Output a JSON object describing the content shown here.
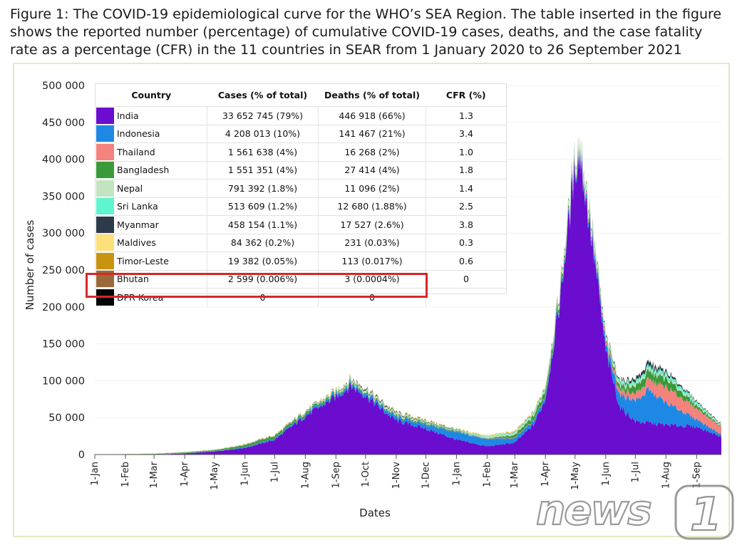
{
  "caption": "Figure 1: The COVID-19 epidemiological curve for the WHO’s SEA Region. The table inserted in the figure shows the reported number (percentage) of cumulative COVID-19 cases, deaths, and the case fatality rate as a percentage (CFR) in the 11 countries in SEAR from 1 January 2020 to 26 September 2021",
  "watermark": "news1",
  "table": {
    "headers": [
      "Country",
      "Cases (% of total)",
      "Deaths (% of total)",
      "CFR (%)"
    ],
    "rows": [
      {
        "country": "India",
        "cases": "33 652 745 (79%)",
        "deaths": "446 918 (66%)",
        "cfr": "1.3",
        "color": "#6a0dce"
      },
      {
        "country": "Indonesia",
        "cases": "4 208 013 (10%)",
        "deaths": "141 467 (21%)",
        "cfr": "3.4",
        "color": "#1e88e5"
      },
      {
        "country": "Thailand",
        "cases": "1 561 638 (4%)",
        "deaths": "16 268 (2%)",
        "cfr": "1.0",
        "color": "#f4837d"
      },
      {
        "country": "Bangladesh",
        "cases": "1 551 351 (4%)",
        "deaths": "27 414 (4%)",
        "cfr": "1.8",
        "color": "#3a9a3a"
      },
      {
        "country": "Nepal",
        "cases": "791 392 (1.8%)",
        "deaths": "11 096 (2%)",
        "cfr": "1.4",
        "color": "#c4e3c0"
      },
      {
        "country": "Sri Lanka",
        "cases": "513 609 (1.2%)",
        "deaths": "12 680 (1.88%)",
        "cfr": "2.5",
        "color": "#5ff5cf"
      },
      {
        "country": "Myanmar",
        "cases": "458 154 (1.1%)",
        "deaths": "17 527 (2.6%)",
        "cfr": "3.8",
        "color": "#2d3a4a"
      },
      {
        "country": "Maldives",
        "cases": "84 362 (0.2%)",
        "deaths": "231 (0.03%)",
        "cfr": "0.3",
        "color": "#fde07a"
      },
      {
        "country": "Timor-Leste",
        "cases": "19 382 (0.05%)",
        "deaths": "113 (0.017%)",
        "cfr": "0.6",
        "color": "#c8930e"
      },
      {
        "country": "Bhutan",
        "cases": "2 599 (0.006%)",
        "deaths": "3 (0.0004%)",
        "cfr": "0",
        "color": "#9a6a3a"
      },
      {
        "country": "DPR Korea",
        "cases": "0",
        "deaths": "0",
        "cfr": "",
        "color": "#050505"
      }
    ]
  },
  "chart_data": {
    "type": "area",
    "title": "",
    "xlabel": "Dates",
    "ylabel": "Number of cases",
    "ylim": [
      0,
      500000
    ],
    "yticks": [
      0,
      50000,
      100000,
      150000,
      200000,
      250000,
      300000,
      350000,
      400000,
      450000,
      500000
    ],
    "ytick_labels": [
      "0",
      "50 000",
      "100 000",
      "150 000",
      "200 000",
      "250 000",
      "300 000",
      "350 000",
      "400 000",
      "450 000",
      "500 000"
    ],
    "xtick_labels": [
      "1-Jan",
      "1-Feb",
      "1-Mar",
      "1-Apr",
      "1-May",
      "1-Jun",
      "1-Jul",
      "1-Aug",
      "1-Sep",
      "1-Oct",
      "1-Nov",
      "1-Dec",
      "1-Jan",
      "1-Feb",
      "1-Mar",
      "1-Apr",
      "1-May",
      "1-Jun",
      "1-Jul",
      "1-Aug",
      "1-Sep"
    ],
    "xtick_dates": [
      "2020-01-01",
      "2020-02-01",
      "2020-03-01",
      "2020-04-01",
      "2020-05-01",
      "2020-06-01",
      "2020-07-01",
      "2020-08-01",
      "2020-09-01",
      "2020-10-01",
      "2020-11-01",
      "2020-12-01",
      "2021-01-01",
      "2021-02-01",
      "2021-03-01",
      "2021-04-01",
      "2021-05-01",
      "2021-06-01",
      "2021-07-01",
      "2021-08-01",
      "2021-09-01"
    ],
    "x_range": [
      "2020-01-01",
      "2021-09-26"
    ],
    "stacked": true,
    "series": [
      {
        "name": "India",
        "color": "#6a0dce",
        "points": [
          [
            "2020-01-01",
            0
          ],
          [
            "2020-03-01",
            0
          ],
          [
            "2020-04-01",
            1500
          ],
          [
            "2020-05-01",
            4000
          ],
          [
            "2020-06-01",
            9000
          ],
          [
            "2020-07-01",
            20000
          ],
          [
            "2020-08-01",
            52000
          ],
          [
            "2020-09-01",
            78000
          ],
          [
            "2020-09-16",
            93000
          ],
          [
            "2020-10-01",
            80000
          ],
          [
            "2020-10-20",
            58000
          ],
          [
            "2020-11-01",
            46000
          ],
          [
            "2020-12-01",
            35000
          ],
          [
            "2021-01-01",
            20000
          ],
          [
            "2021-02-01",
            11000
          ],
          [
            "2021-03-01",
            16000
          ],
          [
            "2021-03-20",
            40000
          ],
          [
            "2021-04-01",
            75000
          ],
          [
            "2021-04-15",
            200000
          ],
          [
            "2021-05-01",
            390000
          ],
          [
            "2021-05-06",
            405000
          ],
          [
            "2021-05-20",
            270000
          ],
          [
            "2021-06-01",
            140000
          ],
          [
            "2021-06-15",
            65000
          ],
          [
            "2021-07-01",
            45000
          ],
          [
            "2021-08-01",
            40000
          ],
          [
            "2021-09-01",
            38000
          ],
          [
            "2021-09-26",
            24000
          ]
        ]
      },
      {
        "name": "Indonesia",
        "color": "#1e88e5",
        "points": [
          [
            "2020-01-01",
            0
          ],
          [
            "2020-05-01",
            500
          ],
          [
            "2020-07-01",
            1500
          ],
          [
            "2020-09-01",
            3000
          ],
          [
            "2020-10-01",
            4000
          ],
          [
            "2020-11-01",
            4500
          ],
          [
            "2020-12-01",
            6000
          ],
          [
            "2021-01-01",
            10000
          ],
          [
            "2021-02-01",
            10000
          ],
          [
            "2021-03-01",
            6000
          ],
          [
            "2021-04-01",
            5000
          ],
          [
            "2021-05-01",
            5000
          ],
          [
            "2021-06-01",
            8000
          ],
          [
            "2021-07-01",
            28000
          ],
          [
            "2021-07-15",
            45000
          ],
          [
            "2021-08-01",
            30000
          ],
          [
            "2021-09-01",
            10000
          ],
          [
            "2021-09-26",
            3000
          ]
        ]
      },
      {
        "name": "Thailand",
        "color": "#f4837d",
        "points": [
          [
            "2020-01-01",
            0
          ],
          [
            "2021-01-01",
            300
          ],
          [
            "2021-04-01",
            1000
          ],
          [
            "2021-05-01",
            2500
          ],
          [
            "2021-06-01",
            3500
          ],
          [
            "2021-07-01",
            9000
          ],
          [
            "2021-08-01",
            21000
          ],
          [
            "2021-09-01",
            15000
          ],
          [
            "2021-09-26",
            10000
          ]
        ]
      },
      {
        "name": "Bangladesh",
        "color": "#3a9a3a",
        "points": [
          [
            "2020-01-01",
            0
          ],
          [
            "2020-05-01",
            1000
          ],
          [
            "2020-06-15",
            3500
          ],
          [
            "2020-08-01",
            2800
          ],
          [
            "2020-10-01",
            1500
          ],
          [
            "2020-12-01",
            1800
          ],
          [
            "2021-02-01",
            400
          ],
          [
            "2021-04-01",
            7000
          ],
          [
            "2021-05-01",
            1500
          ],
          [
            "2021-06-01",
            2000
          ],
          [
            "2021-07-01",
            10000
          ],
          [
            "2021-08-01",
            12000
          ],
          [
            "2021-09-01",
            4000
          ],
          [
            "2021-09-26",
            1000
          ]
        ]
      },
      {
        "name": "Nepal",
        "color": "#c4e3c0",
        "points": [
          [
            "2020-01-01",
            0
          ],
          [
            "2020-07-01",
            200
          ],
          [
            "2020-10-01",
            3000
          ],
          [
            "2020-11-01",
            2500
          ],
          [
            "2021-01-01",
            500
          ],
          [
            "2021-04-01",
            3000
          ],
          [
            "2021-05-10",
            9000
          ],
          [
            "2021-06-01",
            3000
          ],
          [
            "2021-08-01",
            2500
          ],
          [
            "2021-09-26",
            1200
          ]
        ]
      },
      {
        "name": "Sri Lanka",
        "color": "#5ff5cf",
        "points": [
          [
            "2020-01-01",
            0
          ],
          [
            "2020-10-01",
            300
          ],
          [
            "2021-01-01",
            700
          ],
          [
            "2021-05-01",
            2000
          ],
          [
            "2021-06-01",
            2800
          ],
          [
            "2021-08-01",
            4500
          ],
          [
            "2021-09-01",
            3000
          ],
          [
            "2021-09-26",
            1000
          ]
        ]
      },
      {
        "name": "Myanmar",
        "color": "#2d3a4a",
        "points": [
          [
            "2020-01-01",
            0
          ],
          [
            "2020-09-01",
            600
          ],
          [
            "2020-10-01",
            1500
          ],
          [
            "2020-11-01",
            1200
          ],
          [
            "2021-01-01",
            600
          ],
          [
            "2021-02-01",
            100
          ],
          [
            "2021-06-15",
            1500
          ],
          [
            "2021-07-15",
            5500
          ],
          [
            "2021-08-01",
            3000
          ],
          [
            "2021-09-01",
            1200
          ],
          [
            "2021-09-26",
            800
          ]
        ]
      },
      {
        "name": "Maldives",
        "color": "#fde07a",
        "points": [
          [
            "2020-01-01",
            0
          ],
          [
            "2021-05-15",
            1500
          ],
          [
            "2021-06-15",
            300
          ],
          [
            "2021-09-26",
            100
          ]
        ]
      },
      {
        "name": "Timor-Leste",
        "color": "#c8930e",
        "points": [
          [
            "2020-01-01",
            0
          ],
          [
            "2021-04-01",
            300
          ],
          [
            "2021-08-01",
            200
          ],
          [
            "2021-09-26",
            50
          ]
        ]
      },
      {
        "name": "Bhutan",
        "color": "#9a6a3a",
        "points": [
          [
            "2020-01-01",
            0
          ],
          [
            "2021-09-26",
            0
          ]
        ]
      },
      {
        "name": "DPR Korea",
        "color": "#050505",
        "points": [
          [
            "2020-01-01",
            0
          ],
          [
            "2021-09-26",
            0
          ]
        ]
      }
    ]
  }
}
